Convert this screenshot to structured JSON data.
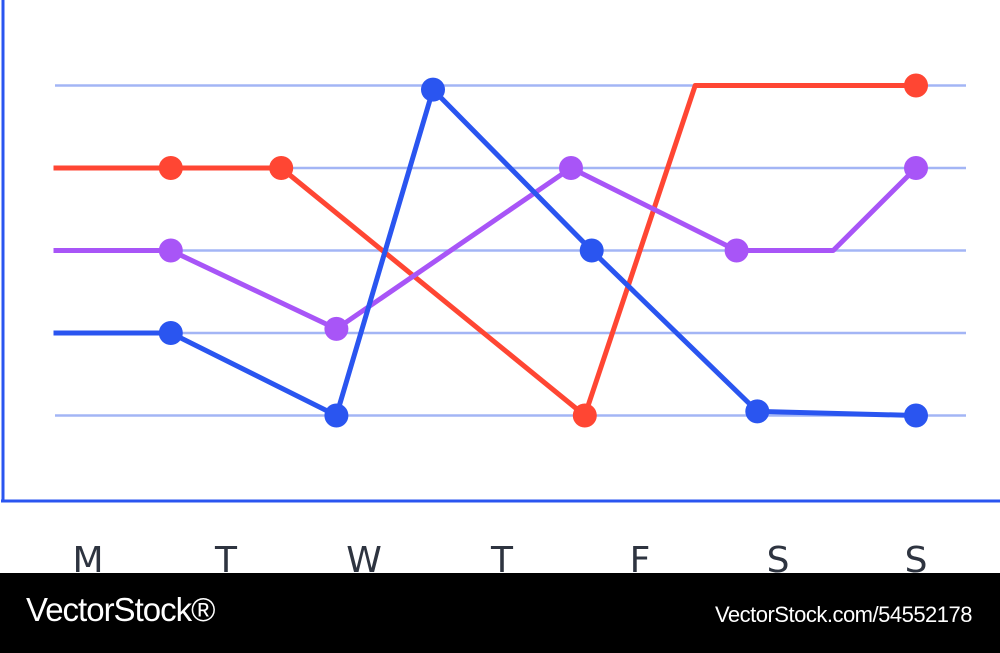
{
  "chart_data": {
    "type": "line",
    "categories": [
      "M",
      "T",
      "W",
      "T",
      "F",
      "S",
      "S"
    ],
    "ylim": [
      0,
      6
    ],
    "gridlines": [
      1,
      2,
      3,
      4,
      5
    ],
    "grid": true,
    "series": [
      {
        "color": "#ff4633",
        "x": [
          -0.25,
          0.6,
          1.4,
          3.6,
          4.4,
          5.0,
          6.0
        ],
        "y": [
          4,
          4,
          4,
          1,
          5,
          5,
          5
        ],
        "markers": [
          false,
          true,
          true,
          true,
          false,
          false,
          true
        ]
      },
      {
        "color": "#a855f7",
        "x": [
          -0.25,
          0.6,
          1.8,
          3.5,
          4.7,
          5.4,
          6.0
        ],
        "y": [
          3,
          3,
          2.05,
          4,
          3,
          3,
          4
        ],
        "markers": [
          false,
          true,
          true,
          true,
          true,
          false,
          true
        ]
      },
      {
        "color": "#2a55f0",
        "x": [
          -0.25,
          0.6,
          1.8,
          2.5,
          3.65,
          4.85,
          6.0
        ],
        "y": [
          2,
          2,
          1,
          4.95,
          3,
          1.05,
          1
        ],
        "markers": [
          false,
          true,
          true,
          true,
          true,
          true,
          true
        ]
      }
    ],
    "colors": {
      "axis": "#2a55f0",
      "grid": "#a3b5f5"
    }
  },
  "footer": {
    "brand": "VectorStock®",
    "stock_id": "VectorStock.com/54552178"
  }
}
